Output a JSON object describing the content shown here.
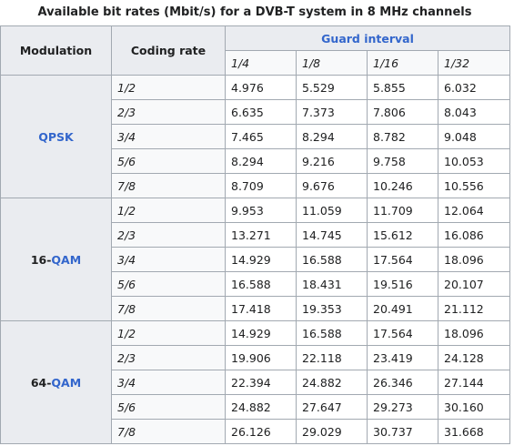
{
  "table": {
    "caption": "Available bit rates (Mbit/s) for a DVB-T system in 8 MHz channels",
    "header": {
      "modulation": "Modulation",
      "coding_rate": "Coding rate",
      "guard_interval": "Guard interval",
      "guard_values": [
        "1/4",
        "1/8",
        "1/16",
        "1/32"
      ]
    },
    "groups": [
      {
        "link": "QPSK",
        "rows": [
          {
            "rate": "1/2",
            "values": [
              "4.976",
              "5.529",
              "5.855",
              "6.032"
            ]
          },
          {
            "rate": "2/3",
            "values": [
              "6.635",
              "7.373",
              "7.806",
              "8.043"
            ]
          },
          {
            "rate": "3/4",
            "values": [
              "7.465",
              "8.294",
              "8.782",
              "9.048"
            ]
          },
          {
            "rate": "5/6",
            "values": [
              "8.294",
              "9.216",
              "9.758",
              "10.053"
            ]
          },
          {
            "rate": "7/8",
            "values": [
              "8.709",
              "9.676",
              "10.246",
              "10.556"
            ]
          }
        ]
      },
      {
        "prefix": "16-",
        "link": "QAM",
        "rows": [
          {
            "rate": "1/2",
            "values": [
              "9.953",
              "11.059",
              "11.709",
              "12.064"
            ]
          },
          {
            "rate": "2/3",
            "values": [
              "13.271",
              "14.745",
              "15.612",
              "16.086"
            ]
          },
          {
            "rate": "3/4",
            "values": [
              "14.929",
              "16.588",
              "17.564",
              "18.096"
            ]
          },
          {
            "rate": "5/6",
            "values": [
              "16.588",
              "18.431",
              "19.516",
              "20.107"
            ]
          },
          {
            "rate": "7/8",
            "values": [
              "17.418",
              "19.353",
              "20.491",
              "21.112"
            ]
          }
        ]
      },
      {
        "prefix": "64-",
        "link": "QAM",
        "rows": [
          {
            "rate": "1/2",
            "values": [
              "14.929",
              "16.588",
              "17.564",
              "18.096"
            ]
          },
          {
            "rate": "2/3",
            "values": [
              "19.906",
              "22.118",
              "23.419",
              "24.128"
            ]
          },
          {
            "rate": "3/4",
            "values": [
              "22.394",
              "24.882",
              "26.346",
              "27.144"
            ]
          },
          {
            "rate": "5/6",
            "values": [
              "24.882",
              "27.647",
              "29.273",
              "30.160"
            ]
          },
          {
            "rate": "7/8",
            "values": [
              "26.126",
              "29.029",
              "30.737",
              "31.668"
            ]
          }
        ]
      }
    ]
  }
}
